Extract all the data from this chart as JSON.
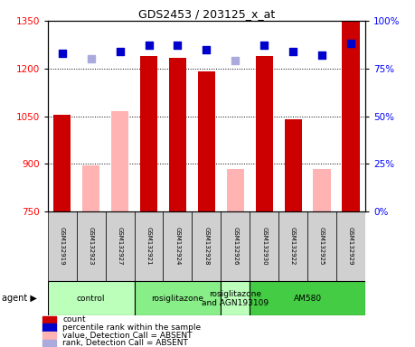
{
  "title": "GDS2453 / 203125_x_at",
  "samples": [
    "GSM132919",
    "GSM132923",
    "GSM132927",
    "GSM132921",
    "GSM132924",
    "GSM132928",
    "GSM132926",
    "GSM132930",
    "GSM132922",
    "GSM132925",
    "GSM132929"
  ],
  "counts": [
    1055,
    null,
    null,
    1240,
    1235,
    1190,
    null,
    1240,
    1040,
    null,
    1350
  ],
  "counts_absent": [
    null,
    895,
    1065,
    null,
    null,
    null,
    885,
    null,
    null,
    885,
    null
  ],
  "ranks": [
    83,
    null,
    84,
    87,
    87,
    85,
    null,
    87,
    84,
    82,
    88
  ],
  "ranks_absent": [
    null,
    80,
    null,
    null,
    null,
    null,
    79,
    null,
    null,
    null,
    null
  ],
  "ylim_left": [
    750,
    1350
  ],
  "ylim_right": [
    0,
    100
  ],
  "yticks_left": [
    750,
    900,
    1050,
    1200,
    1350
  ],
  "yticks_right": [
    0,
    25,
    50,
    75,
    100
  ],
  "agent_groups": [
    {
      "label": "control",
      "start": 0,
      "end": 3,
      "color": "#bbffbb"
    },
    {
      "label": "rosiglitazone",
      "start": 3,
      "end": 6,
      "color": "#88ee88"
    },
    {
      "label": "rosiglitazone\nand AGN193109",
      "start": 6,
      "end": 7,
      "color": "#bbffbb"
    },
    {
      "label": "AM580",
      "start": 7,
      "end": 11,
      "color": "#44cc44"
    }
  ],
  "bar_color_present": "#cc0000",
  "bar_color_absent": "#ffb3b3",
  "dot_color_present": "#0000cc",
  "dot_color_absent": "#aaaadd",
  "bar_width": 0.6,
  "dot_size": 30,
  "legend_items": [
    {
      "color": "#cc0000",
      "label": "count"
    },
    {
      "color": "#0000cc",
      "label": "percentile rank within the sample"
    },
    {
      "color": "#ffb3b3",
      "label": "value, Detection Call = ABSENT"
    },
    {
      "color": "#aaaadd",
      "label": "rank, Detection Call = ABSENT"
    }
  ]
}
